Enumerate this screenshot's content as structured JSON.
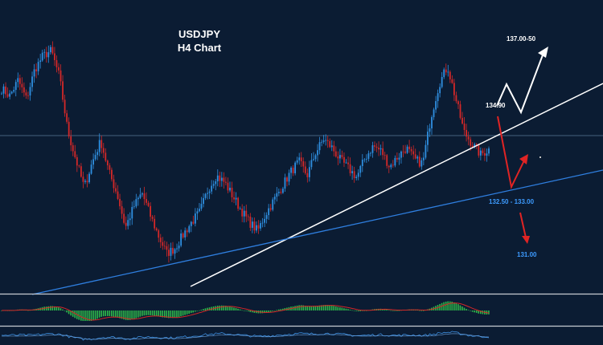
{
  "chart_data": {
    "type": "candlestick",
    "title": "USDJPY",
    "subtitle": "H4 Chart",
    "grid": false,
    "colors": {
      "background": "#0b1c33",
      "bull_candle": "#2f8fe0",
      "bear_candle": "#d42828",
      "trendline_primary": "#ffffff",
      "trendline_secondary": "#2f7fe0",
      "horizontal_level": "#5a7a99",
      "projection_up": "#ffffff",
      "projection_down": "#e02424",
      "histogram": "#2eb84a",
      "signal": "#d42828",
      "oscillator": "#3d8fe0"
    },
    "close_path": [
      137.6,
      137.2,
      138.1,
      137.0,
      138.7,
      139.5,
      139.8,
      138.3,
      135.2,
      133.5,
      131.9,
      133.4,
      134.6,
      132.8,
      131.5,
      129.6,
      130.8,
      131.6,
      130.3,
      129.1,
      128.1,
      128.4,
      129.2,
      129.9,
      130.5,
      131.8,
      132.6,
      132.2,
      131.4,
      130.6,
      129.9,
      129.4,
      130.4,
      131.2,
      132.0,
      132.8,
      133.4,
      132.6,
      133.9,
      134.7,
      134.2,
      133.5,
      133.0,
      132.5,
      133.6,
      134.3,
      134.0,
      133.1,
      133.7,
      134.2,
      133.5,
      133.3,
      136.0,
      137.9,
      138.9,
      137.0,
      135.1,
      134.4,
      133.8,
      134.1
    ],
    "annotations": {
      "target_high": "137.00-50",
      "pivot": "134.90",
      "support_zone": "132.50 - 133.00",
      "target_low": "131.00"
    }
  }
}
